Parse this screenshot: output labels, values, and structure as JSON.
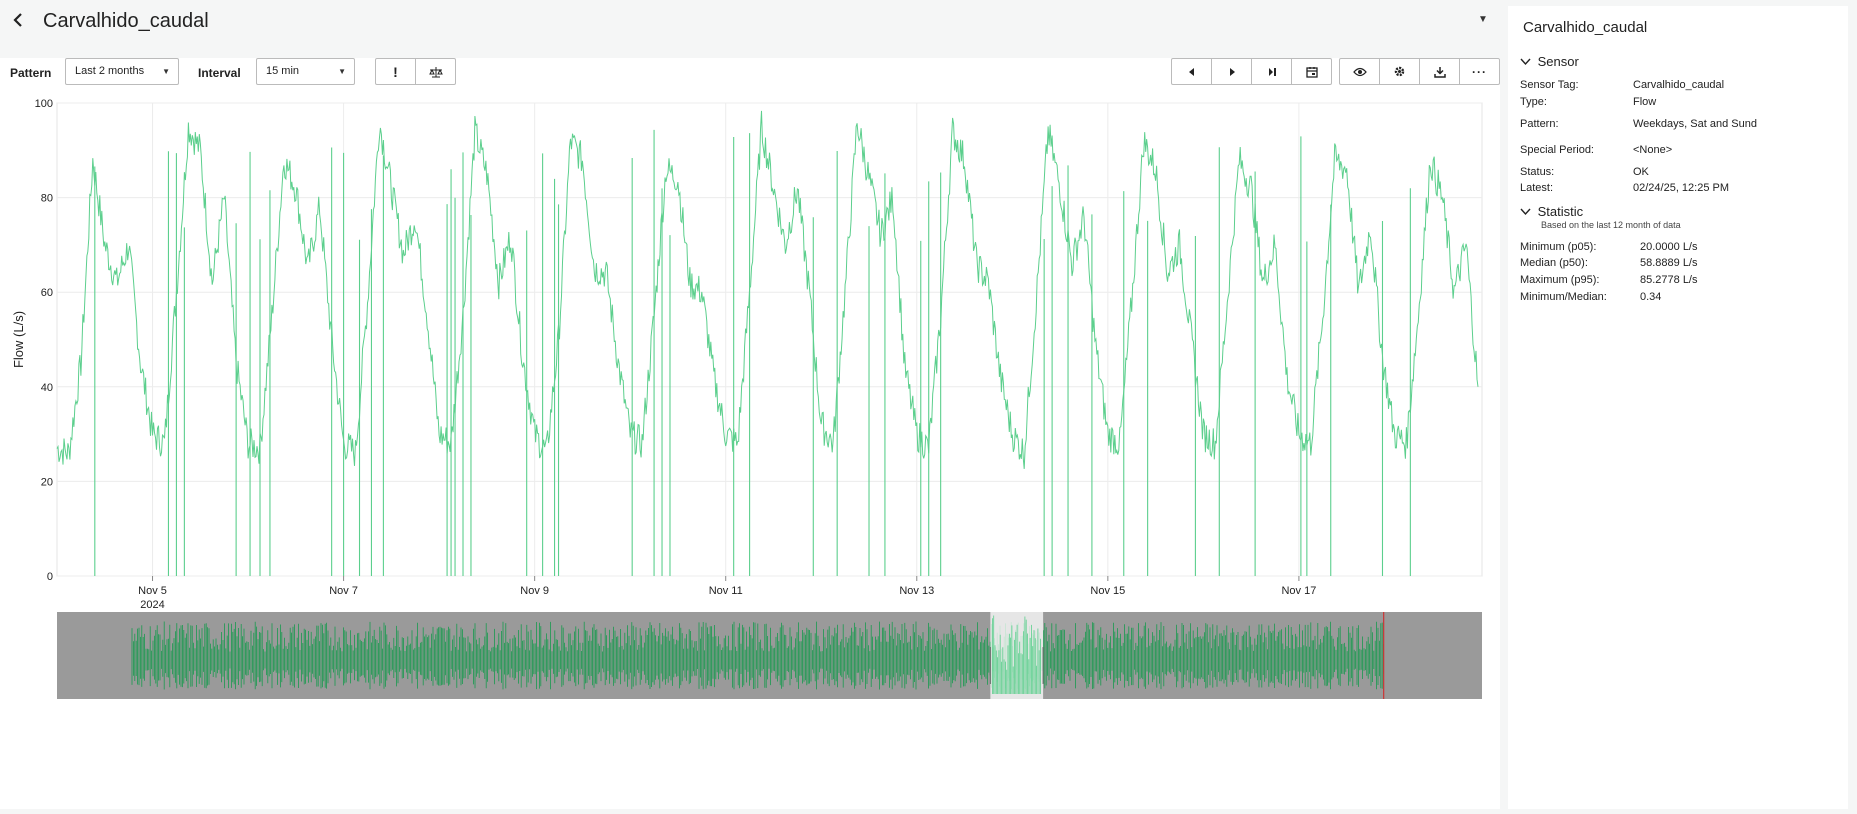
{
  "header": {
    "title": "Carvalhido_caudal"
  },
  "toolbar": {
    "pattern_label": "Pattern",
    "pattern_value": "Last 2 months",
    "interval_label": "Interval",
    "interval_value": "15 min"
  },
  "colors": {
    "series": "#5ccf8d",
    "navigator_series": "#1a9a4f",
    "navigator_bg": "#9a9a9a",
    "marker": "#cc3333"
  },
  "chart_data": {
    "type": "line",
    "ylabel": "Flow (L/s)",
    "ylim": [
      0,
      100
    ],
    "yticks": [
      "0",
      "20",
      "40",
      "60",
      "80",
      "100"
    ],
    "xtick_labels": [
      "Nov 5",
      "Nov 7",
      "Nov 9",
      "Nov 11",
      "Nov 13",
      "Nov 15",
      "Nov 17"
    ],
    "x_sublabel": "2024",
    "xlim": [
      "2024-11-04 00:00",
      "2024-11-18 22:00"
    ],
    "grid": true,
    "series": [
      {
        "values_note": "15-min flow readings, daily cycle",
        "x": [
          "2024-11-04 00:00",
          "2024-11-04 03:00",
          "2024-11-04 06:00",
          "2024-11-04 09:00",
          "2024-11-04 12:00",
          "2024-11-04 15:00",
          "2024-11-04 18:00",
          "2024-11-04 21:00",
          "2024-11-05 00:00",
          "2024-11-05 03:00",
          "2024-11-05 06:00",
          "2024-11-05 09:00",
          "2024-11-05 12:00",
          "2024-11-05 15:00",
          "2024-11-05 18:00",
          "2024-11-05 21:00",
          "2024-11-06 00:00",
          "2024-11-06 03:00",
          "2024-11-06 06:00",
          "2024-11-06 09:00",
          "2024-11-06 12:00",
          "2024-11-06 15:00",
          "2024-11-06 18:00",
          "2024-11-06 21:00",
          "2024-11-07 00:00",
          "2024-11-07 03:00",
          "2024-11-07 06:00",
          "2024-11-07 09:00",
          "2024-11-07 12:00",
          "2024-11-07 15:00",
          "2024-11-07 18:00",
          "2024-11-07 21:00",
          "2024-11-08 00:00",
          "2024-11-08 03:00",
          "2024-11-08 06:00",
          "2024-11-08 09:00",
          "2024-11-08 12:00",
          "2024-11-08 15:00",
          "2024-11-08 18:00",
          "2024-11-08 21:00",
          "2024-11-09 00:00",
          "2024-11-09 03:00",
          "2024-11-09 06:00",
          "2024-11-09 09:00",
          "2024-11-09 12:00",
          "2024-11-09 15:00",
          "2024-11-09 18:00",
          "2024-11-09 21:00",
          "2024-11-10 00:00",
          "2024-11-10 03:00",
          "2024-11-10 06:00",
          "2024-11-10 09:00",
          "2024-11-10 12:00",
          "2024-11-10 15:00",
          "2024-11-10 18:00",
          "2024-11-10 21:00",
          "2024-11-11 00:00",
          "2024-11-11 03:00",
          "2024-11-11 06:00",
          "2024-11-11 09:00",
          "2024-11-11 12:00",
          "2024-11-11 15:00",
          "2024-11-11 18:00",
          "2024-11-11 21:00",
          "2024-11-12 00:00",
          "2024-11-12 03:00",
          "2024-11-12 06:00",
          "2024-11-12 09:00",
          "2024-11-12 12:00",
          "2024-11-12 15:00",
          "2024-11-12 18:00",
          "2024-11-12 21:00",
          "2024-11-13 00:00",
          "2024-11-13 03:00",
          "2024-11-13 06:00",
          "2024-11-13 09:00",
          "2024-11-13 12:00",
          "2024-11-13 15:00",
          "2024-11-13 18:00",
          "2024-11-13 21:00",
          "2024-11-14 00:00",
          "2024-11-14 03:00",
          "2024-11-14 06:00",
          "2024-11-14 09:00",
          "2024-11-14 12:00",
          "2024-11-14 15:00",
          "2024-11-14 18:00",
          "2024-11-14 21:00",
          "2024-11-15 00:00",
          "2024-11-15 03:00",
          "2024-11-15 06:00",
          "2024-11-15 09:00",
          "2024-11-15 12:00",
          "2024-11-15 15:00",
          "2024-11-15 18:00",
          "2024-11-15 21:00",
          "2024-11-16 00:00",
          "2024-11-16 03:00",
          "2024-11-16 06:00",
          "2024-11-16 09:00",
          "2024-11-16 12:00",
          "2024-11-16 15:00",
          "2024-11-16 18:00",
          "2024-11-16 21:00",
          "2024-11-17 00:00",
          "2024-11-17 03:00",
          "2024-11-17 06:00",
          "2024-11-17 09:00",
          "2024-11-17 12:00",
          "2024-11-17 15:00",
          "2024-11-17 18:00",
          "2024-11-17 21:00",
          "2024-11-18 00:00",
          "2024-11-18 03:00",
          "2024-11-18 06:00",
          "2024-11-18 09:00",
          "2024-11-18 12:00",
          "2024-11-18 15:00",
          "2024-11-18 18:00",
          "2024-11-18 21:00"
        ],
        "values": [
          27,
          26,
          45,
          88,
          70,
          62,
          70,
          45,
          30,
          28,
          60,
          95,
          90,
          62,
          80,
          45,
          28,
          27,
          55,
          88,
          82,
          65,
          78,
          50,
          28,
          26,
          58,
          96,
          82,
          68,
          76,
          55,
          30,
          28,
          55,
          94,
          85,
          62,
          72,
          46,
          30,
          26,
          50,
          92,
          88,
          65,
          64,
          45,
          30,
          28,
          55,
          86,
          84,
          62,
          60,
          42,
          30,
          28,
          60,
          95,
          82,
          70,
          82,
          60,
          32,
          28,
          60,
          96,
          84,
          72,
          80,
          44,
          30,
          27,
          55,
          94,
          88,
          66,
          62,
          42,
          30,
          26,
          58,
          94,
          82,
          66,
          76,
          48,
          30,
          28,
          58,
          92,
          86,
          64,
          70,
          50,
          30,
          28,
          58,
          88,
          82,
          62,
          70,
          42,
          30,
          28,
          55,
          88,
          86,
          60,
          74,
          46,
          30,
          28,
          55,
          88,
          80,
          60,
          70,
          40
        ]
      }
    ],
    "drop_to_zero_at": [
      "2024-11-04 09:30",
      "2024-11-05 04:00",
      "2024-11-05 06:00",
      "2024-11-05 08:00",
      "2024-11-05 21:00",
      "2024-11-06 00:30",
      "2024-11-06 03:00",
      "2024-11-06 05:30",
      "2024-11-06 21:00",
      "2024-11-07 00:00",
      "2024-11-07 04:00",
      "2024-11-07 07:00",
      "2024-11-07 10:00",
      "2024-11-08 02:00",
      "2024-11-08 03:00",
      "2024-11-08 04:00",
      "2024-11-08 06:00",
      "2024-11-08 08:00",
      "2024-11-08 22:00",
      "2024-11-09 02:00",
      "2024-11-09 05:00",
      "2024-11-09 06:00",
      "2024-11-10 00:30",
      "2024-11-10 06:00",
      "2024-11-10 08:00",
      "2024-11-10 10:00",
      "2024-11-11 02:00",
      "2024-11-11 06:00",
      "2024-11-11 22:00",
      "2024-11-12 04:00",
      "2024-11-12 12:00",
      "2024-11-12 16:00",
      "2024-11-13 01:00",
      "2024-11-13 03:00",
      "2024-11-13 06:00",
      "2024-11-14 08:00",
      "2024-11-14 10:00",
      "2024-11-14 14:00",
      "2024-11-14 20:00",
      "2024-11-15 04:00",
      "2024-11-15 10:00",
      "2024-11-15 22:00",
      "2024-11-16 04:00",
      "2024-11-16 13:00",
      "2024-11-17 00:30",
      "2024-11-17 02:00",
      "2024-11-17 08:00",
      "2024-11-17 21:00",
      "2024-11-18 04:00"
    ]
  },
  "navigator": {
    "selection_start": 0.655,
    "selection_end": 0.692,
    "marker_at": 0.931
  },
  "side": {
    "title": "Carvalhido_caudal",
    "sensor_section": "Sensor",
    "sensor_rows": [
      {
        "k": "Sensor Tag:",
        "v": "Carvalhido_caudal"
      },
      {
        "k": "Type:",
        "v": "Flow"
      },
      {
        "k": "Pattern:",
        "v": "Weekdays, Sat and Sund"
      },
      {
        "k": "Special Period:",
        "v": "<None>"
      },
      {
        "k": "Status:",
        "v": "OK"
      },
      {
        "k": "Latest:",
        "v": "02/24/25, 12:25 PM"
      }
    ],
    "statistic_section": "Statistic",
    "statistic_sub": "Based on the last 12 month of data",
    "statistic_rows": [
      {
        "k": "Minimum (p05):",
        "v": "20.0000 L/s"
      },
      {
        "k": "Median (p50):",
        "v": "58.8889 L/s"
      },
      {
        "k": "Maximum (p95):",
        "v": "85.2778 L/s"
      },
      {
        "k": "Minimum/Median:",
        "v": "0.34"
      }
    ]
  }
}
